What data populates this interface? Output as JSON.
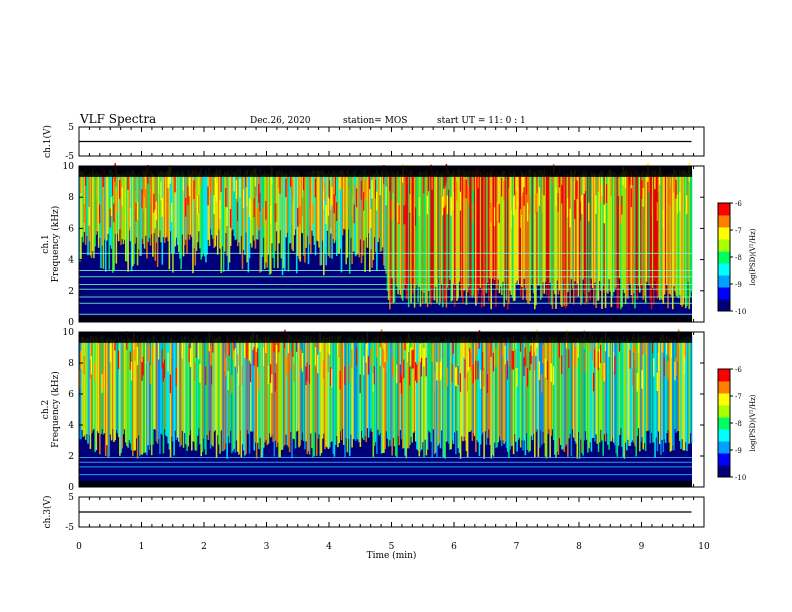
{
  "header": {
    "title": "VLF Spectra",
    "date": "Dec.26, 2020",
    "station": "station= MOS",
    "start": "start  UT =   11: 0  : 1"
  },
  "chart_data": [
    {
      "type": "line",
      "name": "ch1-waveform",
      "ylabel": "ch.1(V)",
      "ylim": [
        -5,
        5
      ],
      "yticks": [
        5,
        -5
      ],
      "xlim": [
        0,
        10
      ],
      "x": [
        0,
        9.8
      ],
      "values": [
        0,
        0
      ]
    },
    {
      "type": "heatmap",
      "name": "ch1-spectrogram",
      "ylabel": "ch.1\nFrequency (kHz)",
      "ylim": [
        0,
        10
      ],
      "yticks": [
        0,
        2,
        4,
        6,
        8,
        10
      ],
      "xlim": [
        0,
        10
      ],
      "colorbar": {
        "label": "log(PSD)(V²/Hz)",
        "range": [
          -10,
          -6
        ],
        "ticks": [
          -6,
          -7,
          -8,
          -9,
          -10
        ]
      }
    },
    {
      "type": "heatmap",
      "name": "ch2-spectrogram",
      "ylabel": "ch.2\nFrequency (kHz)",
      "ylim": [
        0,
        10
      ],
      "yticks": [
        0,
        2,
        4,
        6,
        8,
        10
      ],
      "xlim": [
        0,
        10
      ],
      "colorbar": {
        "label": "log(PSD)(V²/Hz)",
        "range": [
          -10,
          -6
        ],
        "ticks": [
          -6,
          -7,
          -8,
          -9,
          -10
        ]
      }
    },
    {
      "type": "line",
      "name": "ch3-waveform",
      "ylabel": "ch.3(V)",
      "ylim": [
        -5,
        5
      ],
      "yticks": [
        5,
        -5
      ],
      "xlim": [
        0,
        10
      ],
      "xticks": [
        0,
        1,
        2,
        3,
        4,
        5,
        6,
        7,
        8,
        9,
        10
      ],
      "xlabel": "Time (min)",
      "x": [
        0,
        9.8
      ],
      "values": [
        0,
        0
      ]
    }
  ],
  "colors": {
    "scale": [
      "#00007a",
      "#0000ff",
      "#00a0ff",
      "#00ffff",
      "#00ff60",
      "#aaff00",
      "#ffff00",
      "#ff8000",
      "#ff0000"
    ]
  }
}
